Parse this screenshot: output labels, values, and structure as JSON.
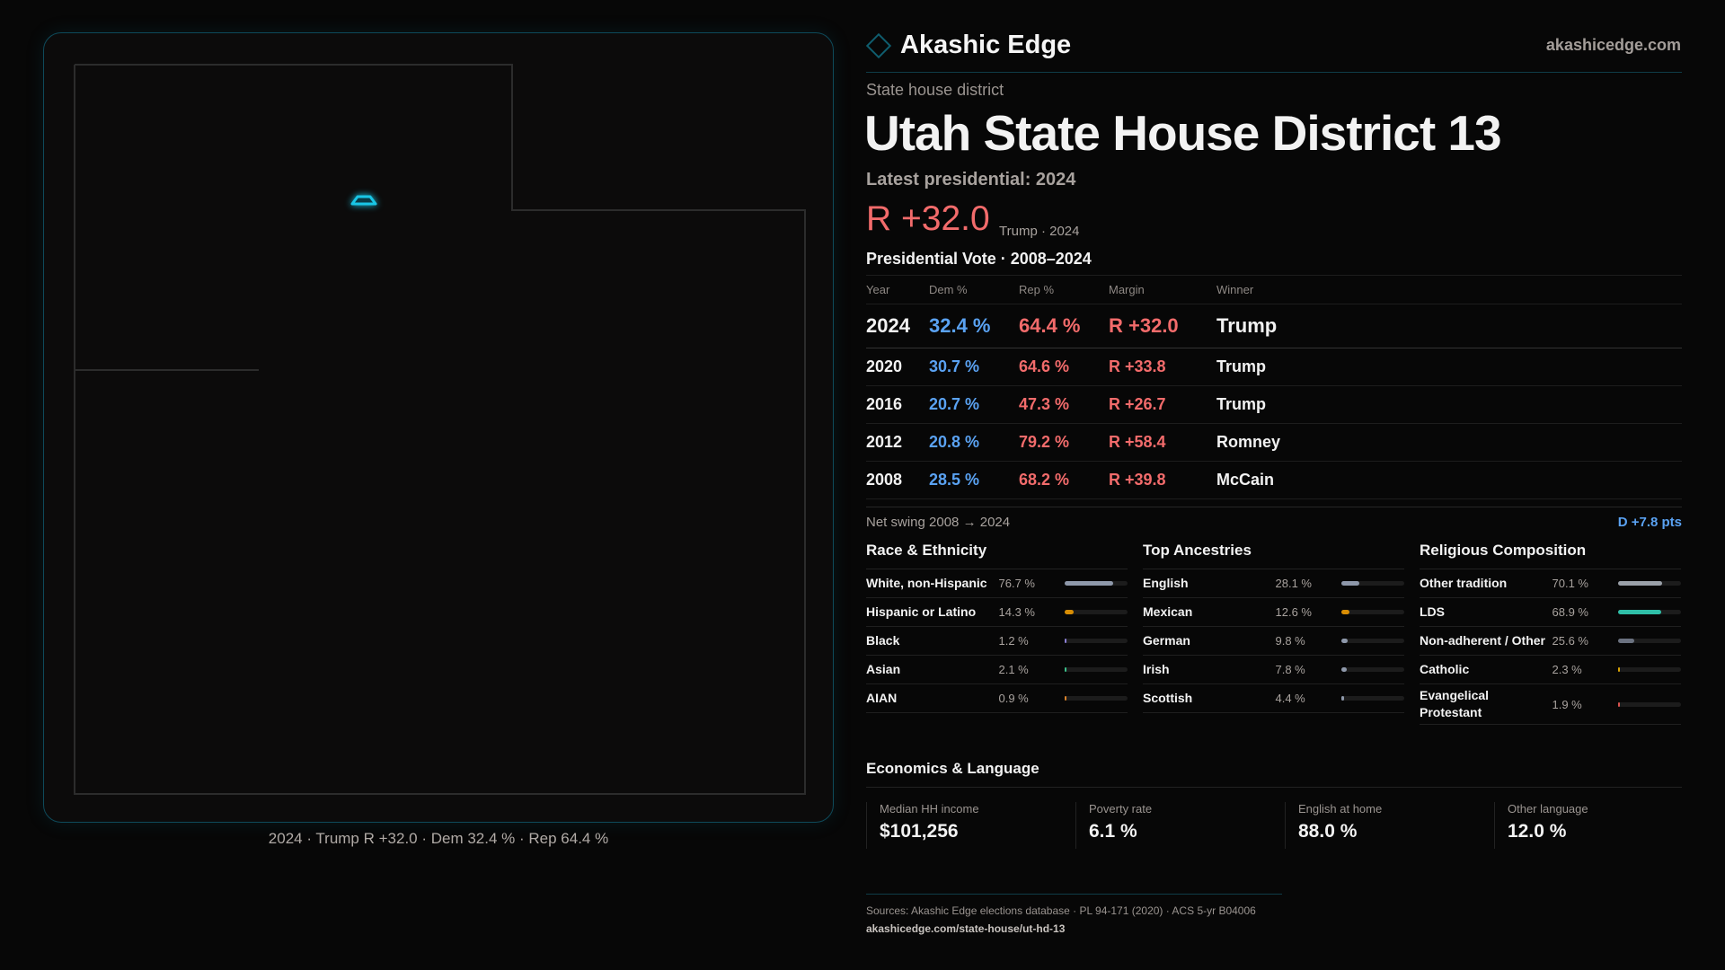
{
  "brand": {
    "name": "Akashic Edge",
    "site": "akashicedge.com",
    "icon": "diamond-logo-icon",
    "accent": "#0f5d6e"
  },
  "map": {
    "caption": "2024 · Trump R +32.0 · Dem 32.4 % · Rep 64.4 %",
    "district_color": "#19c6e6"
  },
  "district": {
    "kind": "State house district",
    "title": "Utah State House District 13",
    "latest": "Latest presidential: 2024",
    "margin": "R +32.0",
    "margin_sub": "Trump · 2024"
  },
  "presidential": {
    "title": "Presidential Vote · 2008–2024",
    "headers": [
      "Year",
      "Dem %",
      "Rep %",
      "Margin",
      "Winner"
    ],
    "rows": [
      [
        "2024",
        "32.4 %",
        "64.4 %",
        "R +32.0",
        "Trump"
      ],
      [
        "2020",
        "30.7 %",
        "64.6 %",
        "R +33.8",
        "Trump"
      ],
      [
        "2016",
        "20.7 %",
        "47.3 %",
        "R +26.7",
        "Trump"
      ],
      [
        "2012",
        "20.8 %",
        "79.2 %",
        "R +58.4",
        "Romney"
      ],
      [
        "2008",
        "28.5 %",
        "68.2 %",
        "R +39.8",
        "McCain"
      ]
    ],
    "dem_color": "#5aa2f2",
    "rep_color": "#f26b6b"
  },
  "swing": {
    "label": "Net swing 2008 → 2024",
    "value": "D +7.8 pts"
  },
  "sections": [
    {
      "title": "Race & Ethnicity",
      "items": [
        {
          "label": "White, non-Hispanic",
          "value": "76.7 %",
          "pct": 76.7,
          "color": "#8e98aa"
        },
        {
          "label": "Hispanic or Latino",
          "value": "14.3 %",
          "pct": 14.3,
          "color": "#d98e04"
        },
        {
          "label": "Black",
          "value": "1.2 %",
          "pct": 1.2,
          "color": "#8b7fd4"
        },
        {
          "label": "Asian",
          "value": "2.1 %",
          "pct": 2.1,
          "color": "#3bbf8a"
        },
        {
          "label": "AIAN",
          "value": "0.9 %",
          "pct": 0.9,
          "color": "#d9822b"
        }
      ]
    },
    {
      "title": "Top Ancestries",
      "items": [
        {
          "label": "English",
          "value": "28.1 %",
          "pct": 28.1,
          "color": "#8e98aa"
        },
        {
          "label": "Mexican",
          "value": "12.6 %",
          "pct": 12.6,
          "color": "#d98e04"
        },
        {
          "label": "German",
          "value": "9.8 %",
          "pct": 9.8,
          "color": "#8e98aa"
        },
        {
          "label": "Irish",
          "value": "7.8 %",
          "pct": 7.8,
          "color": "#8e98aa"
        },
        {
          "label": "Scottish",
          "value": "4.4 %",
          "pct": 4.4,
          "color": "#8e98aa"
        }
      ]
    },
    {
      "title": "Religious Composition",
      "items": [
        {
          "label": "Other tradition",
          "value": "70.1 %",
          "pct": 70.1,
          "color": "#9aa0a8"
        },
        {
          "label": "LDS",
          "value": "68.9 %",
          "pct": 68.9,
          "color": "#2fbfa8"
        },
        {
          "label": "Non-adherent / Other",
          "value": "25.6 %",
          "pct": 25.6,
          "color": "#6b7280"
        },
        {
          "label": "Catholic",
          "value": "2.3 %",
          "pct": 2.3,
          "color": "#d9a404"
        },
        {
          "label": "Evangelical Protestant",
          "value": "1.9 %",
          "pct": 1.9,
          "color": "#d9534f"
        }
      ]
    }
  ],
  "economics": {
    "title": "Economics & Language",
    "stats": [
      {
        "label": "Median HH income",
        "value": "$101,256"
      },
      {
        "label": "Poverty rate",
        "value": "6.1 %"
      },
      {
        "label": "English at home",
        "value": "88.0 %"
      },
      {
        "label": "Other language",
        "value": "12.0 %"
      }
    ]
  },
  "footer": {
    "sources": "Sources: Akashic Edge elections database · PL 94-171 (2020) · ACS 5-yr B04006",
    "link": "akashicedge.com/state-house/ut-hd-13"
  }
}
